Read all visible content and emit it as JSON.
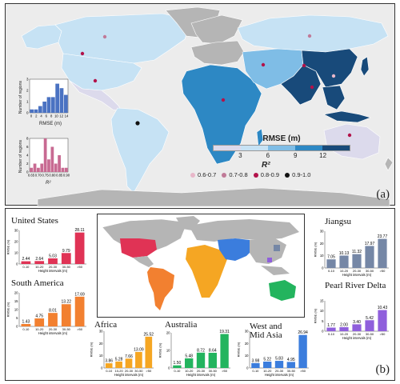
{
  "panel_a": {
    "label": "(a)",
    "colors": {
      "ocean": "#ececec",
      "rmse_bins": [
        "#dcdaec",
        "#c6e2f4",
        "#7fbde6",
        "#2d88c4",
        "#184a7a"
      ],
      "no_data": "#b5b5b5"
    },
    "rmse_legend": {
      "title": "RMSE (m)",
      "ticks": [
        "3",
        "6",
        "9",
        "12"
      ]
    },
    "r2_legend": {
      "title": "R²",
      "items": [
        {
          "label": "0.6-0.7",
          "color": "#e8b7c9"
        },
        {
          "label": "0.7-0.8",
          "color": "#c07a98"
        },
        {
          "label": "0.8-0.9",
          "color": "#b2124a"
        },
        {
          "label": "0.9-1.0",
          "color": "#111111"
        }
      ]
    },
    "hist_rmse": {
      "ylabel": "Number of regions",
      "xlabel": "RMSE (m)",
      "xticks": [
        "0",
        "2",
        "4",
        "6",
        "8",
        "10",
        "12",
        "14"
      ],
      "yticks": [
        "0",
        "1",
        "2",
        "3"
      ],
      "values": [
        0.3,
        0.3,
        0.6,
        1.0,
        1.4,
        1.4,
        2.6,
        2.2,
        1.6
      ],
      "ymax": 3,
      "color": "#4a72c2"
    },
    "hist_r2": {
      "ylabel": "Number of regions",
      "xlabel": "R²",
      "xticks": [
        "0.65",
        "0.70",
        "0.75",
        "0.80",
        "0.85",
        "0.90"
      ],
      "yticks": [
        "0",
        "2",
        "4",
        "6",
        "8"
      ],
      "values": [
        1,
        2,
        1,
        2,
        8,
        3,
        6,
        2,
        4,
        1,
        1
      ],
      "ymax": 8,
      "color": "#c86a92"
    }
  },
  "panel_b": {
    "label": "(b)",
    "ylabel": "RMSE (m)",
    "xlabel": "Height intervals (m)",
    "regions": [
      {
        "name": "United States",
        "color": "#e03355",
        "ymax": 30,
        "yticks": [
          "0",
          "10",
          "20",
          "30"
        ],
        "categories": [
          "0-10",
          "10-20",
          "20-30",
          "30-50",
          ">50"
        ],
        "values": [
          2.44,
          2.64,
          5.03,
          9.79,
          28.11
        ],
        "labels": [
          "2.44",
          "2.64",
          "5.03",
          "9.79",
          "28.11"
        ]
      },
      {
        "name": "South America",
        "color": "#f28030",
        "ymax": 20,
        "yticks": [
          "0",
          "5",
          "10",
          "15",
          "20"
        ],
        "categories": [
          "0-10",
          "10-20",
          "20-30",
          "30-50",
          ">50"
        ],
        "values": [
          1.43,
          4.75,
          8.01,
          13.22,
          17.69
        ],
        "labels": [
          "1.43",
          "4.75",
          "8.01",
          "13.22",
          "17.69"
        ]
      },
      {
        "name": "Africa",
        "color": "#f5a623",
        "ymax": 30,
        "yticks": [
          "0",
          "10",
          "20",
          "30"
        ],
        "categories": [
          "0-10",
          "10-20",
          "20-30",
          "30-50",
          ">50"
        ],
        "values": [
          3.86,
          5.28,
          7.66,
          13.09,
          25.52
        ],
        "labels": [
          "3.86",
          "5.28",
          "7.66",
          "13.09",
          "25.52"
        ]
      },
      {
        "name": "Australia",
        "color": "#23b45e",
        "ymax": 20,
        "yticks": [
          "0",
          "10",
          "20"
        ],
        "categories": [
          "0-10",
          "10-20",
          "20-30",
          "30-50",
          ">50"
        ],
        "values": [
          1.5,
          5.48,
          8.72,
          8.64,
          19.31
        ],
        "labels": [
          "1.50",
          "5.48",
          "8.72",
          "8.64",
          "19.31"
        ]
      },
      {
        "name": "West and Mid Asia",
        "color": "#3b7ddd",
        "ymax": 30,
        "yticks": [
          "0",
          "10",
          "20",
          "30"
        ],
        "categories": [
          "0-10",
          "10-20",
          "20-30",
          "30-50",
          ">50"
        ],
        "values": [
          3.98,
          5.22,
          5.83,
          4.95,
          26.94
        ],
        "labels": [
          "3.98",
          "5.22",
          "5.83",
          "4.95",
          "26.94"
        ]
      },
      {
        "name": "Jiangsu",
        "color": "#7587a6",
        "ymax": 30,
        "yticks": [
          "0",
          "10",
          "20",
          "30"
        ],
        "categories": [
          "0-10",
          "10-20",
          "20-30",
          "30-50",
          ">50"
        ],
        "values": [
          7.05,
          10.13,
          11.32,
          17.97,
          23.77
        ],
        "labels": [
          "7.05",
          "10.13",
          "11.32",
          "17.97",
          "23.77"
        ]
      },
      {
        "name": "Pearl River Delta",
        "color": "#8f5fdc",
        "ymax": 15,
        "yticks": [
          "0",
          "5",
          "10",
          "15"
        ],
        "categories": [
          "0-10",
          "10-20",
          "20-30",
          "30-50",
          ">50"
        ],
        "values": [
          1.77,
          2.0,
          3.4,
          5.42,
          10.43
        ],
        "labels": [
          "1.77",
          "2.00",
          "3.40",
          "5.42",
          "10.43"
        ]
      }
    ]
  }
}
